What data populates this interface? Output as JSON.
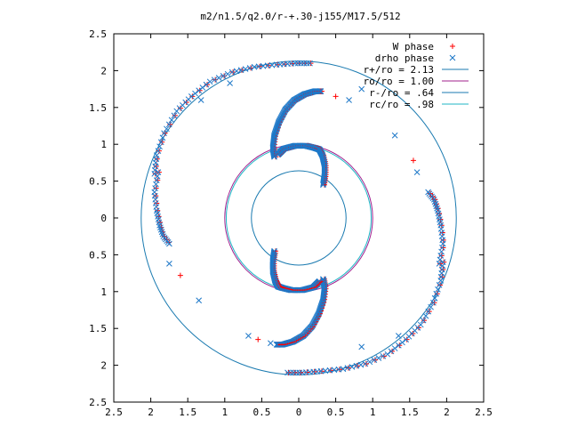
{
  "chart_data": {
    "type": "scatter",
    "title": "m2/n1.5/q2.0/r-+.30-j155/M17.5/512",
    "xlabel": "",
    "ylabel": "",
    "xlim": [
      -2.5,
      2.5
    ],
    "ylim": [
      -2.5,
      2.5
    ],
    "x_ticks": [
      -2.5,
      -2,
      -1.5,
      -1,
      -0.5,
      0,
      0.5,
      1,
      1.5,
      2,
      2.5
    ],
    "y_ticks": [
      -2.5,
      -2,
      -1.5,
      -1,
      -0.5,
      0,
      0.5,
      1,
      1.5,
      2,
      2.5
    ],
    "x_tick_labels": [
      "2.5",
      "2",
      "1.5",
      "1",
      "0.5",
      "0",
      "0.5",
      "1",
      "1.5",
      "2",
      "2.5"
    ],
    "y_tick_labels": [
      "2.5",
      "2",
      "1.5",
      "1",
      "0.5",
      "0",
      "0.5",
      "1",
      "1.5",
      "2",
      "2.5"
    ],
    "grid": false,
    "legend_position": "top-right",
    "series": [
      {
        "name": "W phase",
        "kind": "points",
        "marker": "plus",
        "color": "#ff0000"
      },
      {
        "name": "drho phase",
        "kind": "points",
        "marker": "cross",
        "color": "#1e78c8"
      },
      {
        "name": "r+/ro = 2.13",
        "kind": "circle",
        "radius": 2.13,
        "color": "#1a7ab0"
      },
      {
        "name": "ro/ro = 1.00",
        "kind": "circle",
        "radius": 1.0,
        "color": "#a0208e"
      },
      {
        "name": "r-/ro = .64",
        "kind": "circle",
        "radius": 0.64,
        "color": "#1a7ab0"
      },
      {
        "name": "rc/ro = .98",
        "kind": "circle",
        "radius": 0.98,
        "color": "#1fb6c6"
      }
    ],
    "spiral_points": {
      "upper_arm": [
        [
          -0.33,
          0.83
        ],
        [
          -0.35,
          0.95
        ],
        [
          -0.33,
          1.12
        ],
        [
          -0.27,
          1.3
        ],
        [
          -0.18,
          1.47
        ],
        [
          -0.06,
          1.6
        ],
        [
          0.08,
          1.68
        ],
        [
          0.22,
          1.72
        ],
        [
          0.3,
          1.72
        ]
      ],
      "upper_inner_arc": [
        [
          -0.28,
          0.86
        ],
        [
          -0.2,
          0.94
        ],
        [
          -0.05,
          0.98
        ],
        [
          0.1,
          0.98
        ],
        [
          0.22,
          0.95
        ],
        [
          0.28,
          0.93
        ],
        [
          0.32,
          0.85
        ],
        [
          0.35,
          0.72
        ],
        [
          0.35,
          0.58
        ],
        [
          0.33,
          0.45
        ]
      ],
      "lower_arm": [
        [
          0.33,
          -0.83
        ],
        [
          0.35,
          -0.95
        ],
        [
          0.33,
          -1.12
        ],
        [
          0.27,
          -1.3
        ],
        [
          0.18,
          -1.47
        ],
        [
          0.06,
          -1.6
        ],
        [
          -0.08,
          -1.68
        ],
        [
          -0.22,
          -1.72
        ],
        [
          -0.3,
          -1.72
        ]
      ],
      "lower_inner_arc": [
        [
          0.28,
          -0.86
        ],
        [
          0.2,
          -0.94
        ],
        [
          0.05,
          -0.98
        ],
        [
          -0.1,
          -0.98
        ],
        [
          -0.22,
          -0.95
        ],
        [
          -0.28,
          -0.93
        ],
        [
          -0.32,
          -0.85
        ],
        [
          -0.35,
          -0.72
        ],
        [
          -0.35,
          -0.58
        ],
        [
          -0.33,
          -0.45
        ]
      ],
      "outer_top": [
        [
          -1.95,
          0.6
        ],
        [
          -1.92,
          0.85
        ],
        [
          -1.82,
          1.15
        ],
        [
          -1.65,
          1.45
        ],
        [
          -1.45,
          1.65
        ],
        [
          -1.2,
          1.85
        ],
        [
          -0.9,
          1.98
        ],
        [
          -0.6,
          2.05
        ],
        [
          -0.3,
          2.08
        ],
        [
          -0.05,
          2.1
        ],
        [
          0.15,
          2.1
        ]
      ],
      "outer_left_bump": [
        [
          -1.9,
          0.62
        ],
        [
          -1.95,
          0.35
        ],
        [
          -1.92,
          0.1
        ],
        [
          -1.88,
          -0.1
        ],
        [
          -1.83,
          -0.25
        ],
        [
          -1.75,
          -0.35
        ]
      ],
      "outer_bottom": [
        [
          1.95,
          -0.6
        ],
        [
          1.92,
          -0.85
        ],
        [
          1.82,
          -1.15
        ],
        [
          1.65,
          -1.45
        ],
        [
          1.45,
          -1.65
        ],
        [
          1.2,
          -1.85
        ],
        [
          0.9,
          -1.98
        ],
        [
          0.6,
          -2.05
        ],
        [
          0.3,
          -2.08
        ],
        [
          0.05,
          -2.1
        ],
        [
          -0.15,
          -2.1
        ]
      ],
      "outer_right_bump": [
        [
          1.9,
          -0.62
        ],
        [
          1.95,
          -0.35
        ],
        [
          1.92,
          -0.1
        ],
        [
          1.88,
          0.1
        ],
        [
          1.83,
          0.25
        ],
        [
          1.75,
          0.35
        ]
      ],
      "stray_w": [
        [
          -1.6,
          -0.78
        ],
        [
          0.5,
          1.65
        ],
        [
          1.55,
          0.78
        ],
        [
          -0.55,
          -1.65
        ]
      ],
      "stray_drho": [
        [
          -1.75,
          -0.62
        ],
        [
          -1.35,
          -1.12
        ],
        [
          -1.32,
          1.6
        ],
        [
          -0.93,
          1.83
        ],
        [
          0.85,
          1.75
        ],
        [
          0.68,
          1.6
        ],
        [
          1.3,
          1.12
        ],
        [
          1.6,
          0.62
        ],
        [
          1.35,
          -1.6
        ],
        [
          0.85,
          -1.75
        ],
        [
          -0.68,
          -1.6
        ],
        [
          -0.38,
          -1.7
        ]
      ]
    }
  }
}
